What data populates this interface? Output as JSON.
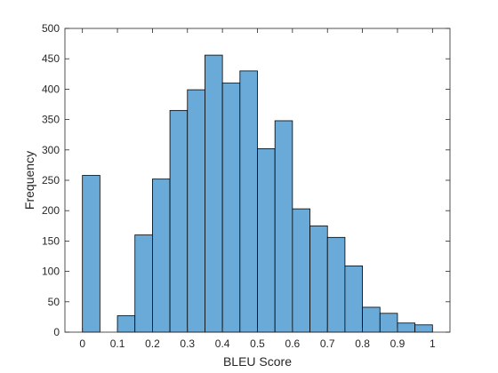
{
  "chart_data": {
    "type": "bar",
    "subtype": "histogram",
    "title": "",
    "xlabel": "BLEU Score",
    "ylabel": "Frequency",
    "xlim": [
      -0.05,
      1.05
    ],
    "ylim": [
      0,
      500
    ],
    "xticks": [
      0,
      0.1,
      0.2,
      0.3,
      0.4,
      0.5,
      0.6,
      0.7,
      0.8,
      0.9,
      1
    ],
    "xtick_labels": [
      "0",
      "0.1",
      "0.2",
      "0.3",
      "0.4",
      "0.5",
      "0.6",
      "0.7",
      "0.8",
      "0.9",
      "1"
    ],
    "yticks": [
      0,
      50,
      100,
      150,
      200,
      250,
      300,
      350,
      400,
      450,
      500
    ],
    "ytick_labels": [
      "0",
      "50",
      "100",
      "150",
      "200",
      "250",
      "300",
      "350",
      "400",
      "450",
      "500"
    ],
    "bin_width": 0.05,
    "bins": [
      {
        "start": 0.0,
        "end": 0.05,
        "value": 258
      },
      {
        "start": 0.05,
        "end": 0.1,
        "value": 0
      },
      {
        "start": 0.1,
        "end": 0.15,
        "value": 27
      },
      {
        "start": 0.15,
        "end": 0.2,
        "value": 160
      },
      {
        "start": 0.2,
        "end": 0.25,
        "value": 252
      },
      {
        "start": 0.25,
        "end": 0.3,
        "value": 365
      },
      {
        "start": 0.3,
        "end": 0.35,
        "value": 399
      },
      {
        "start": 0.35,
        "end": 0.4,
        "value": 456
      },
      {
        "start": 0.4,
        "end": 0.45,
        "value": 410
      },
      {
        "start": 0.45,
        "end": 0.5,
        "value": 430
      },
      {
        "start": 0.5,
        "end": 0.55,
        "value": 302
      },
      {
        "start": 0.55,
        "end": 0.6,
        "value": 348
      },
      {
        "start": 0.6,
        "end": 0.65,
        "value": 203
      },
      {
        "start": 0.65,
        "end": 0.7,
        "value": 175
      },
      {
        "start": 0.7,
        "end": 0.75,
        "value": 156
      },
      {
        "start": 0.75,
        "end": 0.8,
        "value": 109
      },
      {
        "start": 0.8,
        "end": 0.85,
        "value": 41
      },
      {
        "start": 0.85,
        "end": 0.9,
        "value": 31
      },
      {
        "start": 0.9,
        "end": 0.95,
        "value": 15
      },
      {
        "start": 0.95,
        "end": 1.0,
        "value": 12
      }
    ],
    "bar_color": "#6aaad9",
    "bar_edge_color": "#000000",
    "grid": false,
    "legend": "none"
  }
}
